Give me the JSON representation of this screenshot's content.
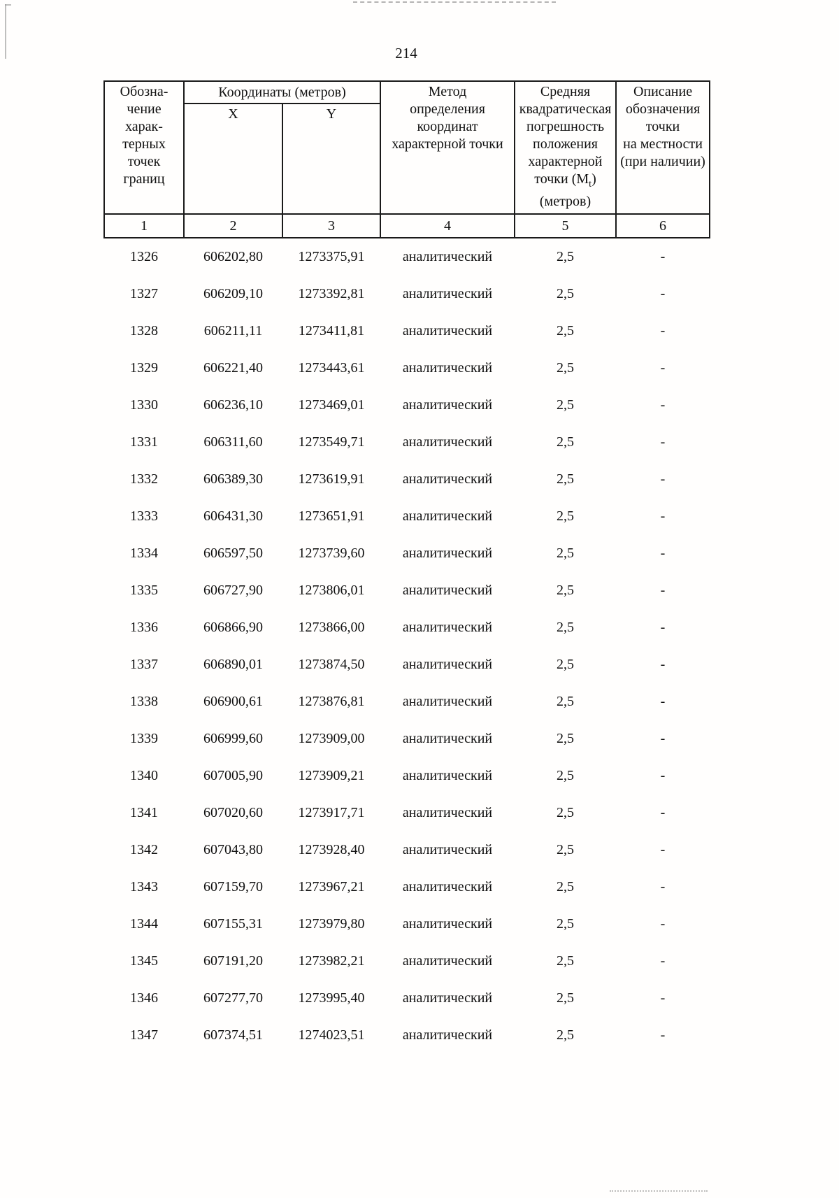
{
  "page": {
    "number": "214"
  },
  "table": {
    "headers": {
      "col1": "Обозна-\nчение\nхарак-\nтерных\nточек\nграниц",
      "coords_group": "Координаты (метров)",
      "coord_x": "X",
      "coord_y": "Y",
      "method": "Метод\nопределения\nкоординат\nхарактерной точки",
      "error_part1": "Средняя\nквадратическая\nпогрешность\nположения\nхарактерной\nточки (М",
      "error_sub": "t",
      "error_part2": ")\n(метров)",
      "description": "Описание\nобозначения\nточки\nна местности\n(при наличии)"
    },
    "column_numbers": [
      "1",
      "2",
      "3",
      "4",
      "5",
      "6"
    ],
    "rows": [
      {
        "point": "1326",
        "x": "606202,80",
        "y": "1273375,91",
        "method": "аналитический",
        "error": "2,5",
        "description": "-"
      },
      {
        "point": "1327",
        "x": "606209,10",
        "y": "1273392,81",
        "method": "аналитический",
        "error": "2,5",
        "description": "-"
      },
      {
        "point": "1328",
        "x": "606211,11",
        "y": "1273411,81",
        "method": "аналитический",
        "error": "2,5",
        "description": "-"
      },
      {
        "point": "1329",
        "x": "606221,40",
        "y": "1273443,61",
        "method": "аналитический",
        "error": "2,5",
        "description": "-"
      },
      {
        "point": "1330",
        "x": "606236,10",
        "y": "1273469,01",
        "method": "аналитический",
        "error": "2,5",
        "description": "-"
      },
      {
        "point": "1331",
        "x": "606311,60",
        "y": "1273549,71",
        "method": "аналитический",
        "error": "2,5",
        "description": "-"
      },
      {
        "point": "1332",
        "x": "606389,30",
        "y": "1273619,91",
        "method": "аналитический",
        "error": "2,5",
        "description": "-"
      },
      {
        "point": "1333",
        "x": "606431,30",
        "y": "1273651,91",
        "method": "аналитический",
        "error": "2,5",
        "description": "-"
      },
      {
        "point": "1334",
        "x": "606597,50",
        "y": "1273739,60",
        "method": "аналитический",
        "error": "2,5",
        "description": "-"
      },
      {
        "point": "1335",
        "x": "606727,90",
        "y": "1273806,01",
        "method": "аналитический",
        "error": "2,5",
        "description": "-"
      },
      {
        "point": "1336",
        "x": "606866,90",
        "y": "1273866,00",
        "method": "аналитический",
        "error": "2,5",
        "description": "-"
      },
      {
        "point": "1337",
        "x": "606890,01",
        "y": "1273874,50",
        "method": "аналитический",
        "error": "2,5",
        "description": "-"
      },
      {
        "point": "1338",
        "x": "606900,61",
        "y": "1273876,81",
        "method": "аналитический",
        "error": "2,5",
        "description": "-"
      },
      {
        "point": "1339",
        "x": "606999,60",
        "y": "1273909,00",
        "method": "аналитический",
        "error": "2,5",
        "description": "-"
      },
      {
        "point": "1340",
        "x": "607005,90",
        "y": "1273909,21",
        "method": "аналитический",
        "error": "2,5",
        "description": "-"
      },
      {
        "point": "1341",
        "x": "607020,60",
        "y": "1273917,71",
        "method": "аналитический",
        "error": "2,5",
        "description": "-"
      },
      {
        "point": "1342",
        "x": "607043,80",
        "y": "1273928,40",
        "method": "аналитический",
        "error": "2,5",
        "description": "-"
      },
      {
        "point": "1343",
        "x": "607159,70",
        "y": "1273967,21",
        "method": "аналитический",
        "error": "2,5",
        "description": "-"
      },
      {
        "point": "1344",
        "x": "607155,31",
        "y": "1273979,80",
        "method": "аналитический",
        "error": "2,5",
        "description": "-"
      },
      {
        "point": "1345",
        "x": "607191,20",
        "y": "1273982,21",
        "method": "аналитический",
        "error": "2,5",
        "description": "-"
      },
      {
        "point": "1346",
        "x": "607277,70",
        "y": "1273995,40",
        "method": "аналитический",
        "error": "2,5",
        "description": "-"
      },
      {
        "point": "1347",
        "x": "607374,51",
        "y": "1274023,51",
        "method": "аналитический",
        "error": "2,5",
        "description": "-"
      }
    ]
  }
}
